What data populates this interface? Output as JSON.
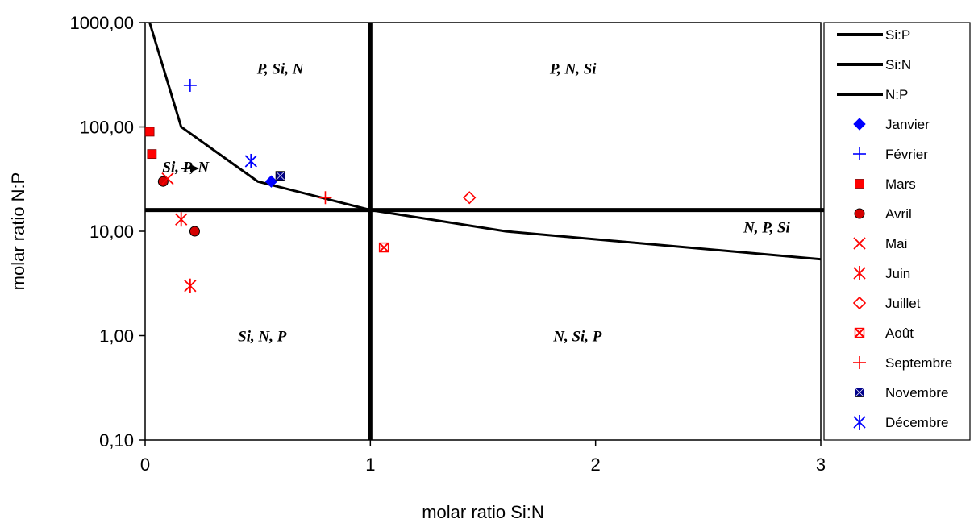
{
  "chart_data": {
    "type": "scatter",
    "xlabel": "molar ratio Si:N",
    "ylabel": "molar ratio N:P",
    "y_scale": "log",
    "xlim": [
      0,
      3
    ],
    "ylim": [
      0.1,
      1000
    ],
    "x_ticks": [
      {
        "value": 0,
        "label": "0"
      },
      {
        "value": 1,
        "label": "1"
      },
      {
        "value": 2,
        "label": "2"
      },
      {
        "value": 3,
        "label": "3"
      }
    ],
    "y_ticks": [
      {
        "value": 0.1,
        "label": "0,10"
      },
      {
        "value": 1,
        "label": "1,00"
      },
      {
        "value": 10,
        "label": "10,00"
      },
      {
        "value": 100,
        "label": "100,00"
      },
      {
        "value": 1000,
        "label": "1000,00"
      }
    ],
    "legend_position": "right",
    "reference_lines": [
      {
        "name": "Si:P",
        "points": [
          [
            0.02,
            1000
          ],
          [
            0.16,
            100
          ],
          [
            0.5,
            30
          ],
          [
            1,
            16
          ],
          [
            1.6,
            10
          ],
          [
            3,
            5.4
          ]
        ]
      },
      {
        "name": "Si:N",
        "x": 1
      },
      {
        "name": "N:P",
        "y": 16
      }
    ],
    "regions": [
      {
        "label": "P, Si, N",
        "x": 0.6,
        "y": 350
      },
      {
        "label": "P, N, Si",
        "x": 1.9,
        "y": 350
      },
      {
        "label": "Si, P, N",
        "x": 0.18,
        "y": 40
      },
      {
        "label": "N, P, Si",
        "x": 2.76,
        "y": 10.5
      },
      {
        "label": "Si, N, P",
        "x": 0.52,
        "y": 0.95
      },
      {
        "label": "N, Si, P",
        "x": 1.92,
        "y": 0.95
      }
    ],
    "annotation_arrow": {
      "from": [
        0.16,
        40
      ],
      "to": [
        0.24,
        40
      ]
    },
    "series": [
      {
        "name": "Janvier",
        "marker": "diamond",
        "color": "#0000ff",
        "points": [
          [
            0.56,
            30
          ]
        ]
      },
      {
        "name": "Février",
        "marker": "plus",
        "color": "#0000ff",
        "points": [
          [
            0.2,
            250
          ]
        ]
      },
      {
        "name": "Mars",
        "marker": "square",
        "color": "#ff0000",
        "points": [
          [
            0.02,
            90
          ],
          [
            0.03,
            55
          ]
        ]
      },
      {
        "name": "Avril",
        "marker": "circle",
        "color": "#ff0000",
        "points": [
          [
            0.08,
            30
          ],
          [
            0.22,
            10
          ]
        ]
      },
      {
        "name": "Mai",
        "marker": "x",
        "color": "#ff0000",
        "points": [
          [
            0.1,
            32
          ]
        ]
      },
      {
        "name": "Juin",
        "marker": "asterisk",
        "color": "#ff0000",
        "points": [
          [
            0.16,
            13
          ],
          [
            0.2,
            3
          ]
        ]
      },
      {
        "name": "Juillet",
        "marker": "diamond-open",
        "color": "#ff0000",
        "points": [
          [
            1.44,
            21
          ]
        ]
      },
      {
        "name": "Août",
        "marker": "square-pattern",
        "color": "#ff0000",
        "points": [
          [
            1.06,
            7
          ]
        ]
      },
      {
        "name": "Septembre",
        "marker": "plus",
        "color": "#ff0000",
        "points": [
          [
            0.8,
            21
          ]
        ]
      },
      {
        "name": "Novembre",
        "marker": "square-dark",
        "color": "#00008b",
        "points": [
          [
            0.6,
            34
          ]
        ]
      },
      {
        "name": "Décembre",
        "marker": "asterisk",
        "color": "#0000ff",
        "points": [
          [
            0.47,
            47
          ]
        ]
      }
    ]
  }
}
